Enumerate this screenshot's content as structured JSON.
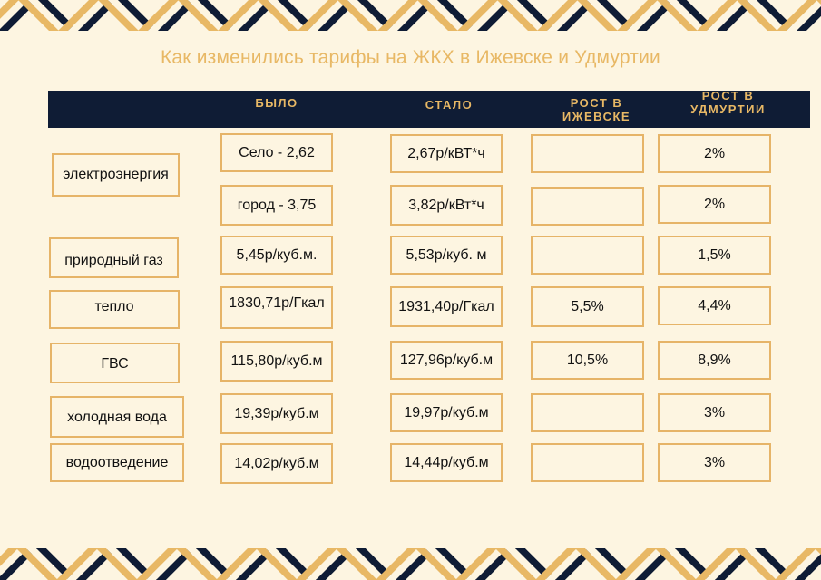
{
  "title": "Как изменились тарифы на ЖКХ в Ижевске и Удмуртии",
  "headers": {
    "was": "БЫЛО",
    "now": "СТАЛО",
    "izhevsk_line1": "РОСТ В",
    "izhevsk_line2": "ИЖЕВСКЕ",
    "udm_line1": "РОСТ В",
    "udm_line2": "УДМУРТИИ"
  },
  "labels": {
    "electricity": "электроэнергия",
    "gas": "природный газ",
    "heat": "тепло",
    "hot_water": "ГВС",
    "cold_water": "холодная вода",
    "drainage": "водоотведение"
  },
  "rows": [
    {
      "was": "Село - 2,62",
      "now": "2,67р/кВТ*ч",
      "izhevsk": "",
      "udmurtia": "2%"
    },
    {
      "was": "город - 3,75",
      "now": "3,82р/кВт*ч",
      "izhevsk": "",
      "udmurtia": "2%"
    },
    {
      "was": "5,45р/куб.м.",
      "now": "5,53р/куб. м",
      "izhevsk": "",
      "udmurtia": "1,5%"
    },
    {
      "was": "1830,71р/Гкал",
      "now": "1931,40р/Гкал",
      "izhevsk": "5,5%",
      "udmurtia": "4,4%"
    },
    {
      "was": "115,80р/куб.м",
      "now": "127,96р/куб.м",
      "izhevsk": "10,5%",
      "udmurtia": "8,9%"
    },
    {
      "was": "19,39р/куб.м",
      "now": "19,97р/куб.м",
      "izhevsk": "",
      "udmurtia": "3%"
    },
    {
      "was": "14,02р/куб.м",
      "now": "14,44р/куб.м",
      "izhevsk": "",
      "udmurtia": "3%"
    }
  ],
  "colors": {
    "accent": "#e8b865",
    "navy": "#0f1c35",
    "background": "#fdf5e1"
  }
}
